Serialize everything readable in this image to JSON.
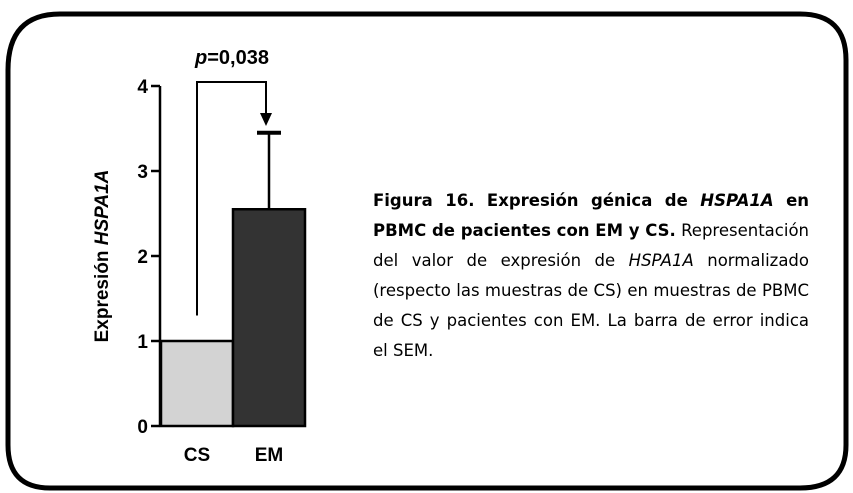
{
  "chart_data": {
    "type": "bar",
    "categories": [
      "CS",
      "EM"
    ],
    "values": [
      1,
      2.55
    ],
    "errors": [
      null,
      0.9
    ],
    "colors": [
      "#d3d3d3",
      "#333333"
    ],
    "ylim": [
      0,
      4
    ],
    "yticks": [
      0,
      1,
      2,
      3,
      4
    ],
    "ylabel": {
      "text": "Expresión",
      "gene": "HSPA1A"
    },
    "annotation": {
      "symbol": "p",
      "text": "=0,038"
    }
  },
  "caption": [
    {
      "text": "Figura 16. Expresión génica de ",
      "style": "bold"
    },
    {
      "text": "HSPA1A",
      "style": "bold-italic"
    },
    {
      "text": " en PBMC de pacientes con EM y CS.",
      "style": "bold"
    },
    {
      "text": " Representación del valor de expresión de ",
      "style": "normal"
    },
    {
      "text": "HSPA1A",
      "style": "italic"
    },
    {
      "text": " normalizado (respecto las muestras de CS) en muestras de PBMC de CS y pacientes con EM. La barra de error indica el SEM.",
      "style": "normal"
    }
  ]
}
